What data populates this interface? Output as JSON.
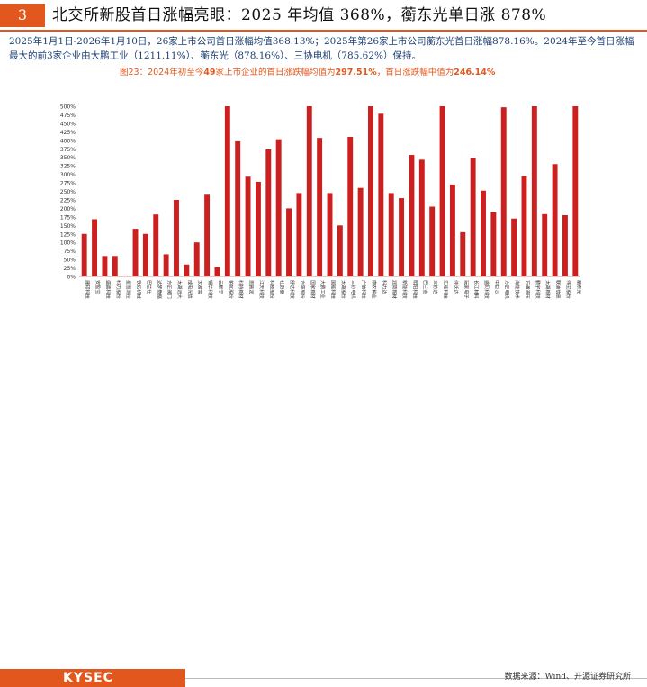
{
  "header": {
    "section_number": "3",
    "title": "北交所新股首日涨幅亮眼：2025 年均值 368%，蘅东光单日涨 878%"
  },
  "paragraph": "2025年1月1日-2026年1月10日，26家上市公司首日涨幅均值368.13%；2025年第26家上市公司蘅东光首日涨幅878.16%。2024年至今首日涨幅最大的前3家企业由大鹏工业（1211.11%）、蘅东光（878.16%）、三协电机（785.62%）保持。",
  "figure_caption": {
    "prefix": "图23：",
    "part1": "2024年初至今",
    "count": "49",
    "part2": "家上市企业的首日涨跌幅均值为",
    "mean": "297.51%",
    "part3": "，首日涨跌幅中值为",
    "median": "246.14%"
  },
  "chart_data": {
    "type": "bar",
    "color": "#cc1f1f",
    "ylim": [
      0,
      500
    ],
    "yticks": [
      "0%",
      "25%",
      "50%",
      "75%",
      "100%",
      "125%",
      "150%",
      "175%",
      "200%",
      "225%",
      "250%",
      "275%",
      "300%",
      "325%",
      "350%",
      "375%",
      "400%",
      "425%",
      "450%",
      "475%",
      "500%"
    ],
    "categories": [
      "建邦科技",
      "安盈宝",
      "盛德科技",
      "科力股份",
      "星图测控",
      "铁拓机械",
      "巴兰仕",
      "达梦数据",
      "方正阀门",
      "太湖远大",
      "成电光信",
      "太湖雪",
      "锡华科技",
      "云星宇",
      "帕瓦股份",
      "科特新材",
      "思普润",
      "江天科技",
      "科技股份",
      "社奇泰",
      "舒达科技",
      "方盛股份",
      "国家新材",
      "大鹏工业",
      "国能科技",
      "太湖股份",
      "三协电机",
      "广信科技",
      "康农种业",
      "科力达",
      "润荷新材",
      "新能科技",
      "明阳科技",
      "巴兰金",
      "三协达",
      "汇能科技",
      "佳沃达",
      "玩家电子",
      "长江材料",
      "盛贝科技",
      "中巨芯",
      "方正电机",
      "海能技术",
      "万通液压",
      "鹏宇科技",
      "太湖新材",
      "联迪信息",
      "伟宝股份",
      "蘅东光"
    ],
    "values": [
      125,
      168,
      60,
      60,
      2,
      140,
      125,
      182,
      65,
      225,
      35,
      100,
      240,
      28,
      500,
      397,
      293,
      278,
      373,
      403,
      200,
      245,
      500,
      407,
      245,
      150,
      410,
      260,
      500,
      478,
      245,
      230,
      357,
      343,
      205,
      500,
      270,
      130,
      348,
      252,
      188,
      497,
      170,
      295,
      500,
      183,
      330,
      180,
      500
    ]
  },
  "footer": {
    "logo": "KYSEC",
    "source": "数据来源：Wind、开源证券研究所"
  }
}
